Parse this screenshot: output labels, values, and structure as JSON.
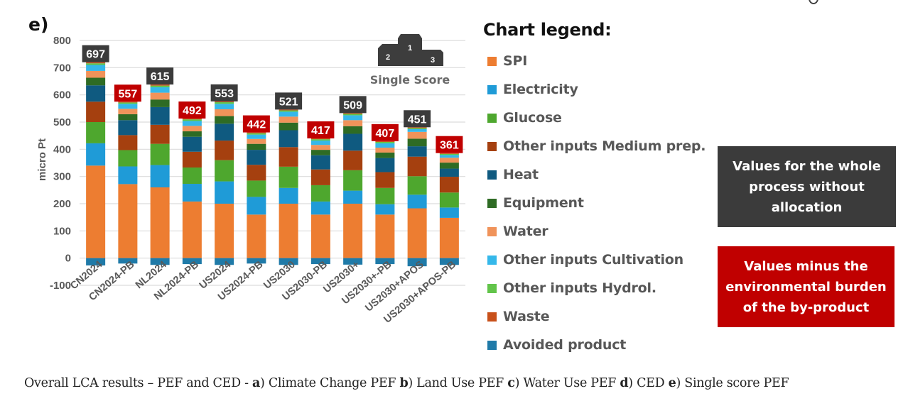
{
  "panel_label": "e)",
  "chart_data": {
    "type": "bar",
    "stacked": true,
    "title": "",
    "xlabel": "",
    "ylabel": "micro Pt",
    "ylim": [
      -100,
      800
    ],
    "yticks": [
      -100,
      0,
      100,
      200,
      300,
      400,
      500,
      600,
      700,
      800
    ],
    "grid": true,
    "categories": [
      "CN2024",
      "CN2024-PB",
      "NL2024",
      "NL2024-PB",
      "US2024",
      "US2024-PB",
      "US2030",
      "US2030-PB",
      "US2030+",
      "US2030+-PB",
      "US2030+APOS",
      "US2030+APOS-PB"
    ],
    "totals": [
      697,
      557,
      615,
      492,
      553,
      442,
      521,
      417,
      509,
      407,
      451,
      361
    ],
    "total_label_styles": [
      "whole",
      "by-product",
      "whole",
      "by-product",
      "whole",
      "by-product",
      "whole",
      "by-product",
      "whole",
      "by-product",
      "whole",
      "by-product"
    ],
    "series": [
      {
        "name": "SPI",
        "color": "#ed7d31",
        "values": [
          340,
          272,
          260,
          208,
          200,
          160,
          200,
          160,
          200,
          160,
          183,
          148
        ]
      },
      {
        "name": "Electricity",
        "color": "#1f9bd7",
        "values": [
          82,
          65,
          82,
          65,
          82,
          65,
          58,
          48,
          48,
          38,
          50,
          38
        ]
      },
      {
        "name": "Glucose",
        "color": "#4ea72e",
        "values": [
          78,
          60,
          78,
          60,
          78,
          60,
          78,
          60,
          75,
          60,
          68,
          55
        ]
      },
      {
        "name": "Other inputs Medium prep.",
        "color": "#a5400f",
        "values": [
          75,
          55,
          70,
          58,
          72,
          58,
          72,
          58,
          72,
          58,
          72,
          58
        ]
      },
      {
        "name": "Heat",
        "color": "#0f5a80",
        "values": [
          60,
          55,
          65,
          55,
          62,
          55,
          62,
          52,
          62,
          52,
          38,
          30
        ]
      },
      {
        "name": "Equipment",
        "color": "#2e6b24",
        "values": [
          28,
          22,
          28,
          20,
          28,
          22,
          28,
          20,
          28,
          20,
          28,
          22
        ]
      },
      {
        "name": "Water",
        "color": "#f0935a",
        "values": [
          25,
          20,
          25,
          20,
          25,
          18,
          22,
          18,
          22,
          18,
          25,
          18
        ]
      },
      {
        "name": "Other inputs Cultivation",
        "color": "#35b8ea",
        "values": [
          22,
          18,
          20,
          18,
          20,
          16,
          18,
          16,
          18,
          16,
          10,
          10
        ]
      },
      {
        "name": "Other inputs Hydrol.",
        "color": "#62c44a",
        "values": [
          6,
          5,
          6,
          6,
          6,
          5,
          5,
          5,
          5,
          5,
          4,
          4
        ]
      },
      {
        "name": "Waste",
        "color": "#c8501a",
        "values": [
          4,
          3,
          4,
          3,
          3,
          3,
          3,
          3,
          3,
          3,
          3,
          3
        ]
      },
      {
        "name": "Avoided product",
        "color": "#1f7aa8",
        "values": [
          -27,
          -20,
          -25,
          -22,
          -25,
          -20,
          -25,
          -22,
          -24,
          -22,
          -30,
          -25
        ]
      }
    ]
  },
  "badge_colors": {
    "whole": "#3b3b3b",
    "by-product": "#c00000"
  },
  "podium": {
    "label": "Single Score",
    "places": [
      "2",
      "1",
      "3"
    ]
  },
  "legend": {
    "title": "Chart legend:",
    "items": [
      {
        "label": "SPI",
        "color": "#ed7d31"
      },
      {
        "label": "Electricity",
        "color": "#1f9bd7"
      },
      {
        "label": "Glucose",
        "color": "#4ea72e"
      },
      {
        "label": "Other inputs Medium prep.",
        "color": "#a5400f"
      },
      {
        "label": "Heat",
        "color": "#0f5a80"
      },
      {
        "label": "Equipment",
        "color": "#2e6b24"
      },
      {
        "label": "Water",
        "color": "#f0935a"
      },
      {
        "label": "Other inputs Cultivation",
        "color": "#35b8ea"
      },
      {
        "label": "Other inputs Hydrol.",
        "color": "#62c44a"
      },
      {
        "label": "Waste",
        "color": "#c8501a"
      },
      {
        "label": "Avoided product",
        "color": "#1f7aa8"
      }
    ]
  },
  "notes": {
    "whole": "Values for the whole process without allocation",
    "byproduct": "Values minus the environmental burden of the by-product"
  },
  "caption": {
    "lead": "Overall LCA results – PEF and CED - ",
    "parts": [
      {
        "key": "a",
        "text": ") Climate Change PEF "
      },
      {
        "key": "b",
        "text": ") Land Use PEF "
      },
      {
        "key": "c",
        "text": ") Water Use PEF "
      },
      {
        "key": "d",
        "text": ") CED "
      },
      {
        "key": "e",
        "text": ") Single score PEF"
      }
    ]
  }
}
